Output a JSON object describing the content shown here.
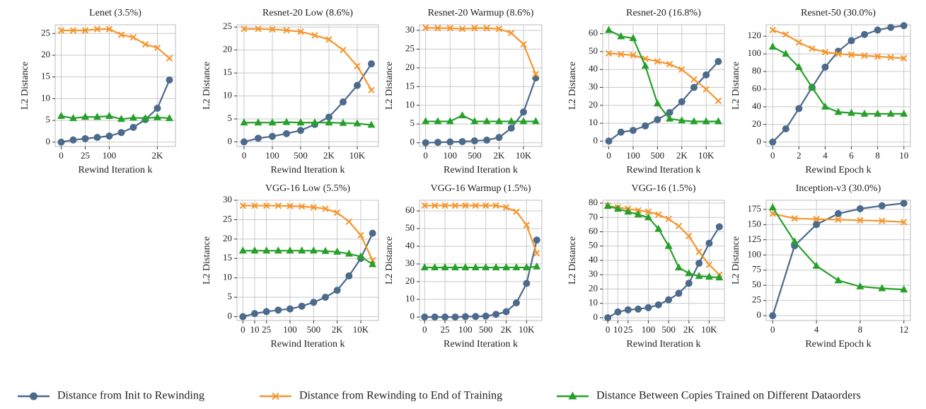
{
  "legend": [
    {
      "name": "Distance from Init to Rewinding",
      "color": "#4c6a8c",
      "marker": "circle"
    },
    {
      "name": "Distance from Rewinding to End of Training",
      "color": "#f5962d",
      "marker": "x"
    },
    {
      "name": "Distance Between Copies Trained on Different Dataorders",
      "color": "#27a02a",
      "marker": "triangle"
    }
  ],
  "chart_data": [
    {
      "type": "line",
      "title": "Lenet (3.5%)",
      "xlabel": "Rewind Iteration k",
      "ylabel": "L2 Distance",
      "grid": true,
      "categories": [
        "0",
        null,
        "25",
        null,
        "100",
        null,
        null,
        null,
        "2K",
        null
      ],
      "ylim": [
        -1,
        27
      ],
      "yticks": [
        0,
        5,
        10,
        15,
        20,
        25
      ],
      "series": [
        {
          "values": [
            0,
            0.5,
            0.8,
            1.1,
            1.4,
            2.2,
            3.4,
            5.2,
            7.8,
            14.3
          ]
        },
        {
          "values": [
            25.7,
            25.7,
            25.7,
            26,
            26,
            24.7,
            24.1,
            22.5,
            21.7,
            19.3
          ]
        },
        {
          "values": [
            6,
            5.5,
            5.8,
            5.8,
            6,
            5.3,
            5.6,
            5.5,
            5.7,
            5.5
          ]
        }
      ]
    },
    {
      "type": "line",
      "title": "Resnet-20 Low (8.6%)",
      "xlabel": "Rewind Iteration k",
      "ylabel": "L2 Distance",
      "grid": true,
      "categories": [
        "0",
        null,
        "100",
        null,
        "500",
        null,
        "2K",
        null,
        "10K",
        null
      ],
      "ylim": [
        -1,
        25.5
      ],
      "yticks": [
        0,
        5,
        10,
        15,
        20,
        25
      ],
      "series": [
        {
          "values": [
            0,
            0.8,
            1.2,
            1.8,
            2.5,
            3.8,
            5.4,
            8.7,
            12.3,
            17
          ]
        },
        {
          "values": [
            24.6,
            24.6,
            24.5,
            24.3,
            24,
            23.2,
            22.3,
            20,
            16.5,
            11.3
          ]
        },
        {
          "values": [
            4.2,
            4.2,
            4.2,
            4.3,
            4.2,
            4.2,
            4.2,
            4.1,
            4,
            3.7
          ]
        }
      ]
    },
    {
      "type": "line",
      "title": "Resnet-20 Warmup (8.6%)",
      "xlabel": "Rewind Iteration k",
      "ylabel": "L2 Distance",
      "grid": true,
      "categories": [
        "0",
        null,
        "100",
        null,
        "500",
        null,
        "2K",
        null,
        "10K",
        null
      ],
      "ylim": [
        -1,
        31.5
      ],
      "yticks": [
        0,
        5,
        10,
        15,
        20,
        25,
        30
      ],
      "series": [
        {
          "values": [
            0,
            0.1,
            0.2,
            0.3,
            0.5,
            0.7,
            1.4,
            3.9,
            8.2,
            17.3
          ]
        },
        {
          "values": [
            30.7,
            30.6,
            30.6,
            30.4,
            30.6,
            30.6,
            30.4,
            29.3,
            26.3,
            18.3
          ]
        },
        {
          "values": [
            5.7,
            5.7,
            5.7,
            7.3,
            5.7,
            5.7,
            5.7,
            5.7,
            5.7,
            5.7
          ]
        }
      ]
    },
    {
      "type": "line",
      "title": "Resnet-20 (16.8%)",
      "xlabel": "Rewind Iteration k",
      "ylabel": "L2 Distance",
      "grid": true,
      "categories": [
        "0",
        null,
        "100",
        null,
        "500",
        null,
        "2K",
        null,
        "10K",
        null
      ],
      "ylim": [
        -3,
        65
      ],
      "yticks": [
        0,
        10,
        20,
        30,
        40,
        50,
        60
      ],
      "series": [
        {
          "values": [
            0,
            5,
            6,
            8.5,
            12,
            16,
            22,
            30,
            37,
            44.5
          ]
        },
        {
          "values": [
            49,
            48.5,
            48,
            46,
            44.5,
            43,
            40,
            34.5,
            29,
            22.5
          ]
        },
        {
          "values": [
            62,
            58.5,
            57.5,
            42,
            21,
            12.5,
            11.5,
            11,
            11,
            11
          ]
        }
      ]
    },
    {
      "type": "line",
      "title": "Resnet-50 (30.0%)",
      "xlabel": "Rewind Epoch k",
      "ylabel": "L2 Distance",
      "grid": true,
      "x": [
        0,
        1,
        2,
        3,
        4,
        5,
        6,
        7,
        8,
        9,
        10
      ],
      "xlim": [
        -0.5,
        10.5
      ],
      "xticks": [
        0,
        2,
        4,
        6,
        8,
        10
      ],
      "ylim": [
        -5,
        133
      ],
      "yticks": [
        0,
        20,
        40,
        60,
        80,
        100,
        120
      ],
      "series": [
        {
          "values": [
            0,
            15,
            38,
            62,
            85,
            103,
            115,
            122,
            127,
            130,
            132
          ]
        },
        {
          "values": [
            127,
            122,
            113,
            106,
            102,
            100,
            99,
            98,
            97,
            96,
            95
          ]
        },
        {
          "values": [
            108,
            100,
            85,
            62,
            40,
            34,
            33,
            32,
            32,
            32,
            32
          ]
        }
      ]
    },
    {
      "type": "line",
      "title": "VGG-16 Low (5.5%)",
      "xlabel": "Rewind Iteration k",
      "ylabel": "L2 Distance",
      "grid": true,
      "categories": [
        "0",
        "10",
        "25",
        null,
        "100",
        null,
        "500",
        null,
        "2K",
        null,
        "10K",
        null
      ],
      "ylim": [
        -1,
        30
      ],
      "yticks": [
        0,
        5,
        10,
        15,
        20,
        25,
        30
      ],
      "series": [
        {
          "values": [
            0,
            0.8,
            1.3,
            1.7,
            2,
            2.7,
            3.7,
            5,
            6.8,
            10.5,
            15,
            21.5
          ]
        },
        {
          "values": [
            28.6,
            28.6,
            28.6,
            28.6,
            28.5,
            28.4,
            28.2,
            27.8,
            26.8,
            24.5,
            21,
            14.5
          ]
        },
        {
          "values": [
            17,
            17,
            17,
            17,
            17,
            17,
            17,
            16.9,
            16.7,
            16.2,
            15.5,
            13.5
          ]
        }
      ]
    },
    {
      "type": "line",
      "title": "VGG-16 Warmup (1.5%)",
      "xlabel": "Rewind Iteration k",
      "ylabel": "L2 Distance",
      "grid": true,
      "categories": [
        "0",
        null,
        "25",
        null,
        "100",
        null,
        "500",
        null,
        "2K",
        null,
        "10K",
        null
      ],
      "ylim": [
        -2,
        66
      ],
      "yticks": [
        0,
        10,
        20,
        30,
        40,
        50,
        60
      ],
      "series": [
        {
          "values": [
            0,
            0,
            0,
            0,
            0.2,
            0.3,
            0.5,
            1.5,
            3,
            8,
            19,
            43.5
          ]
        },
        {
          "values": [
            63,
            63,
            63,
            63,
            63,
            63,
            63,
            63,
            62,
            59.5,
            52,
            36
          ]
        },
        {
          "values": [
            28,
            28,
            28,
            28,
            28,
            28,
            28,
            28,
            28,
            28,
            28,
            28.5
          ]
        }
      ]
    },
    {
      "type": "line",
      "title": "VGG-16 (1.5%)",
      "xlabel": "Rewind Iteration k",
      "ylabel": "L2 Distance",
      "grid": true,
      "categories": [
        "0",
        "10",
        "25",
        null,
        "100",
        null,
        "500",
        null,
        "2K",
        null,
        "10K",
        null
      ],
      "ylim": [
        -2,
        82
      ],
      "yticks": [
        0,
        10,
        20,
        30,
        40,
        50,
        60,
        70,
        80
      ],
      "series": [
        {
          "values": [
            0,
            4,
            5.5,
            6,
            7,
            9,
            12.5,
            17,
            24,
            38,
            52,
            63.5
          ]
        },
        {
          "values": [
            78,
            77,
            76,
            75,
            74,
            72,
            69,
            64,
            57,
            46,
            37,
            30
          ]
        },
        {
          "values": [
            78,
            76,
            74,
            72,
            70,
            62,
            50,
            35,
            31,
            29,
            28.5,
            28
          ]
        }
      ]
    },
    {
      "type": "line",
      "title": "Inception-v3 (30.0%)",
      "xlabel": "Rewind Epoch k",
      "ylabel": "L2 Distance",
      "grid": true,
      "x": [
        0,
        2,
        4,
        6,
        8,
        10,
        12
      ],
      "xlim": [
        -0.6,
        12.6
      ],
      "xticks": [
        0,
        4,
        8,
        12
      ],
      "ylim": [
        -8,
        190
      ],
      "yticks": [
        0,
        25,
        50,
        75,
        100,
        125,
        150,
        175
      ],
      "series": [
        {
          "values": [
            0,
            115,
            150,
            168,
            176,
            181,
            185
          ]
        },
        {
          "values": [
            168,
            160,
            159,
            158,
            157,
            156,
            154
          ]
        },
        {
          "values": [
            178,
            122,
            82,
            58,
            48,
            45,
            43
          ]
        }
      ]
    }
  ]
}
